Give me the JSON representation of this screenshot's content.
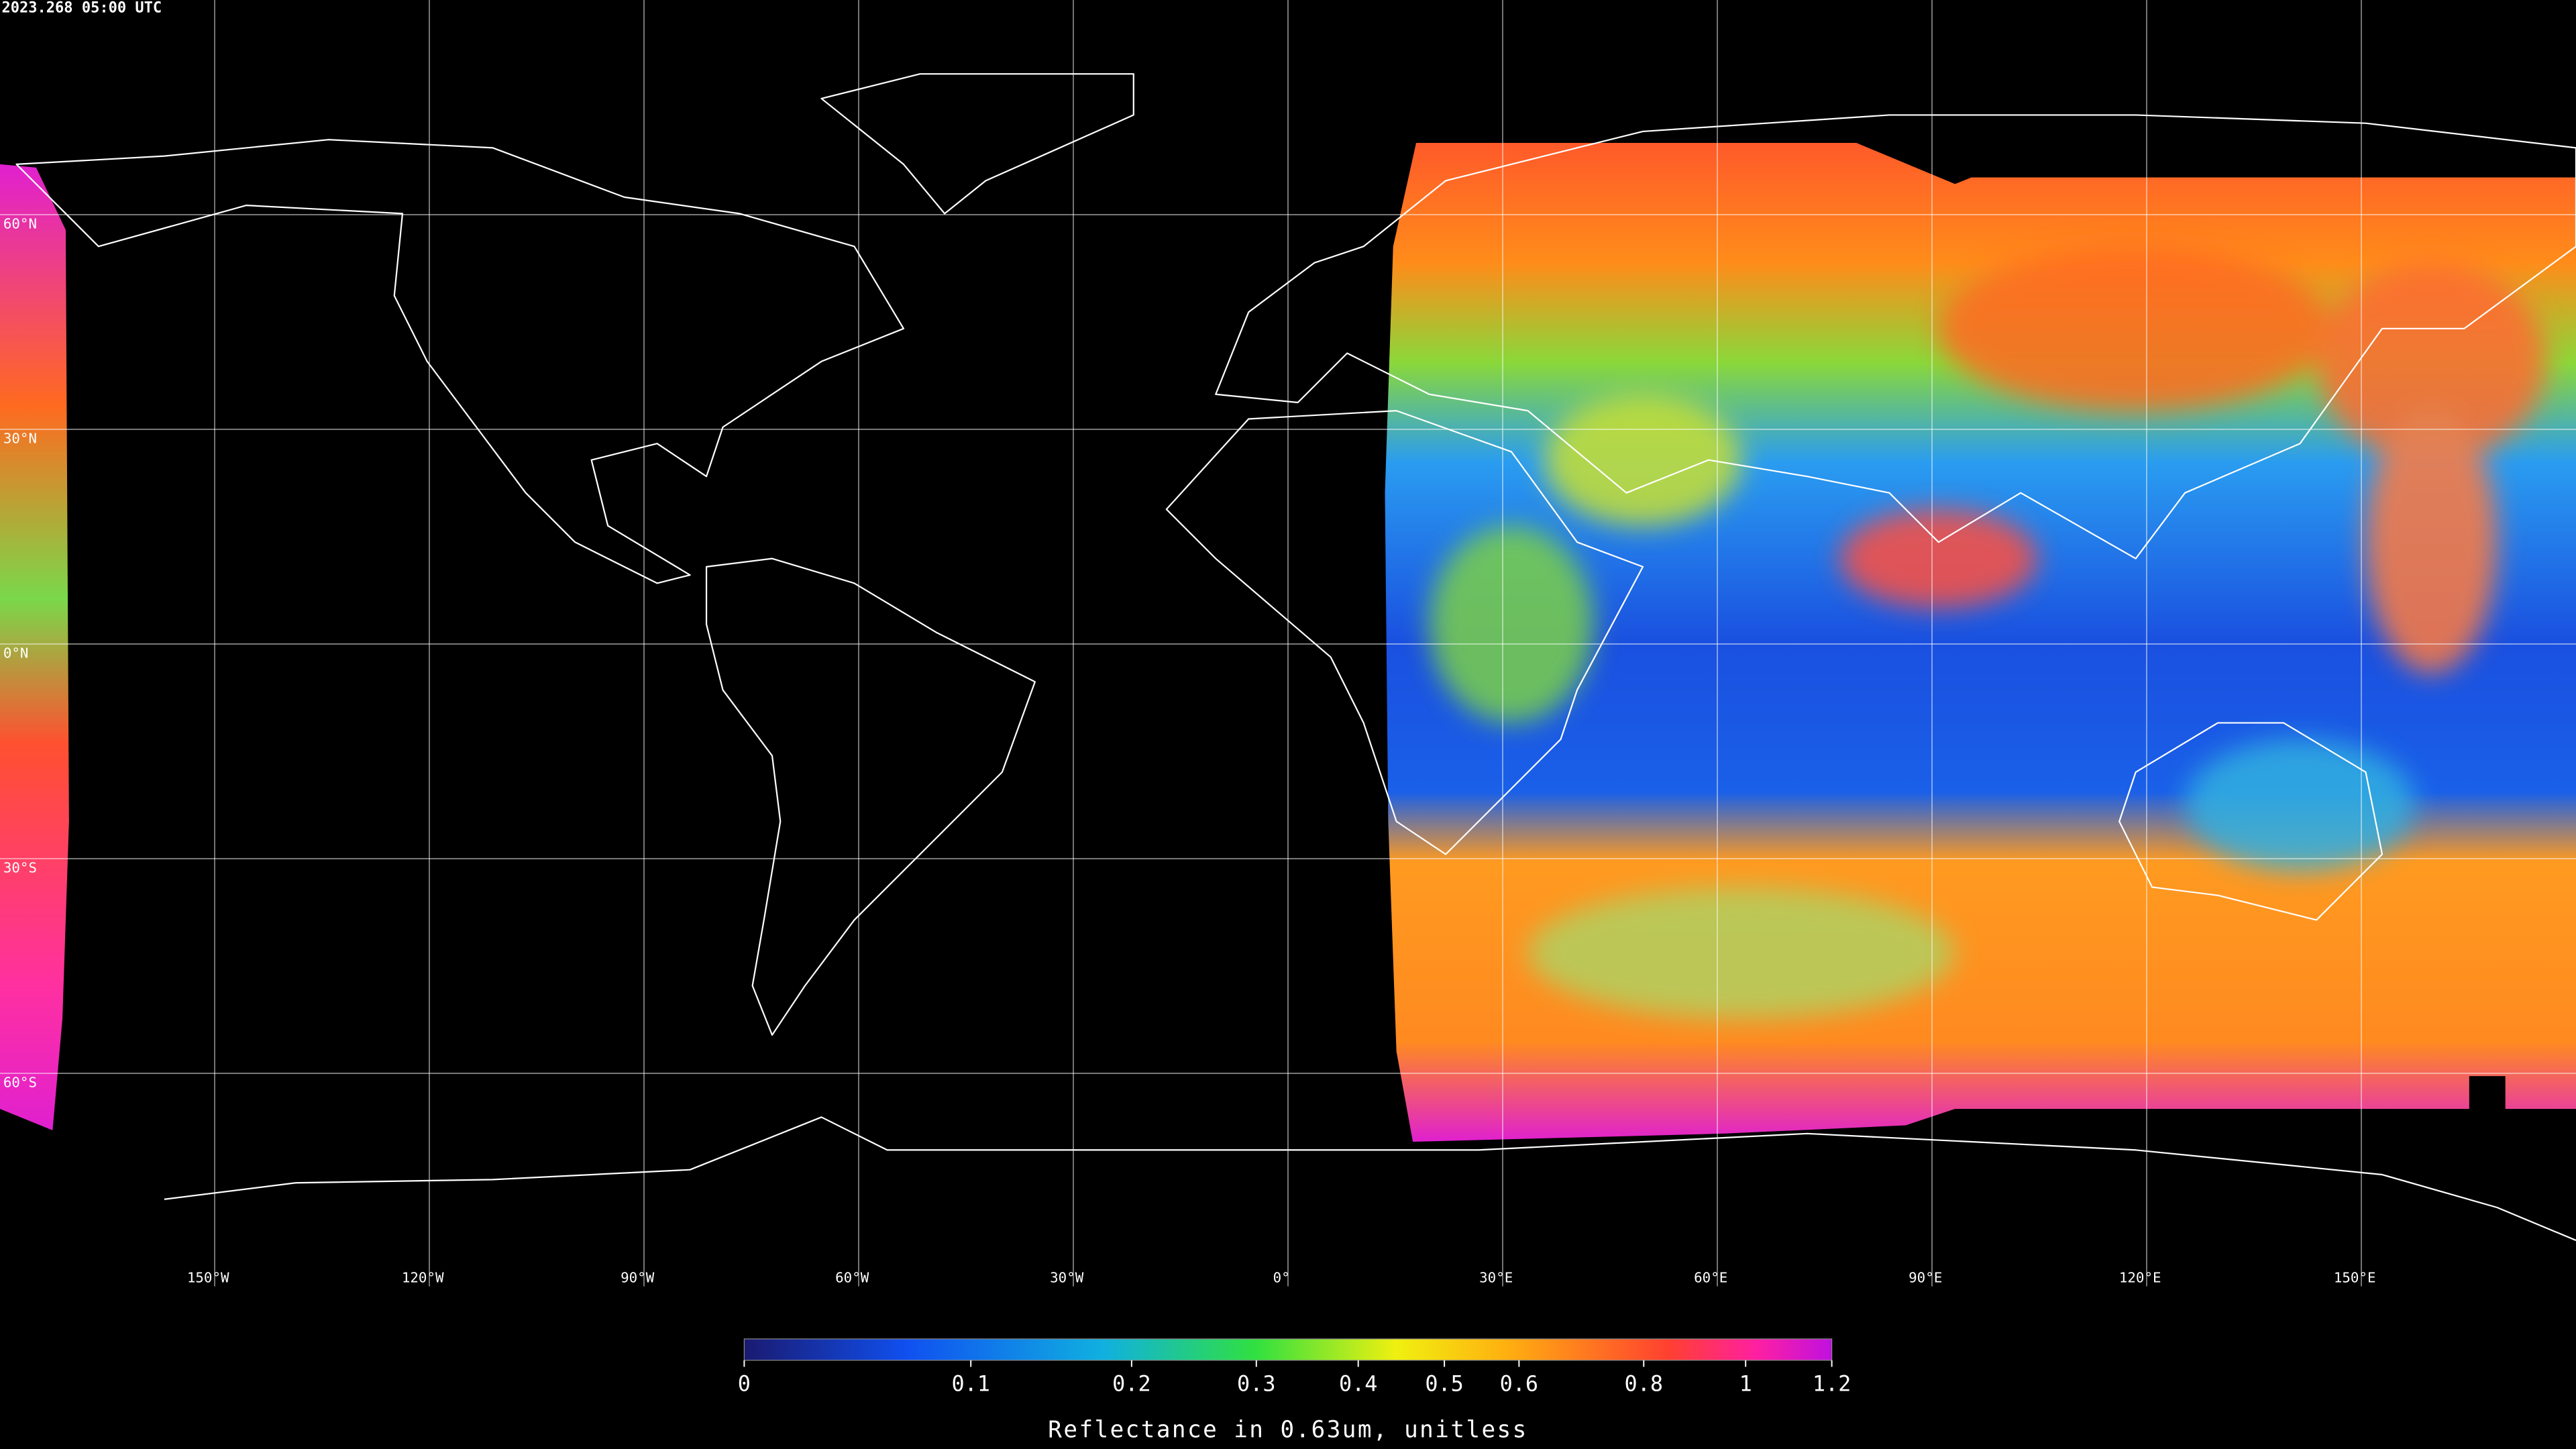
{
  "timestamp": "2023.268 05:00 UTC",
  "map": {
    "lon_range": [
      -180,
      180
    ],
    "lat_range": [
      -90,
      90
    ],
    "lon_ticks": [
      {
        "value": -150,
        "label": "150°W"
      },
      {
        "value": -120,
        "label": "120°W"
      },
      {
        "value": -90,
        "label": "90°W"
      },
      {
        "value": -60,
        "label": "60°W"
      },
      {
        "value": -30,
        "label": "30°W"
      },
      {
        "value": 0,
        "label": "0°"
      },
      {
        "value": 30,
        "label": "30°E"
      },
      {
        "value": 60,
        "label": "60°E"
      },
      {
        "value": 90,
        "label": "90°E"
      },
      {
        "value": 120,
        "label": "120°E"
      },
      {
        "value": 150,
        "label": "150°E"
      }
    ],
    "lat_ticks": [
      {
        "value": 60,
        "label": "60°N"
      },
      {
        "value": 30,
        "label": "30°N"
      },
      {
        "value": 0,
        "label": "0°N"
      },
      {
        "value": -30,
        "label": "30°S"
      },
      {
        "value": -60,
        "label": "60°S"
      }
    ]
  },
  "colorbar": {
    "label": "Reflectance in 0.63um, unitless",
    "range": [
      0,
      1.2
    ],
    "ticks": [
      0,
      0.1,
      0.2,
      0.3,
      0.4,
      0.5,
      0.6,
      0.8,
      1,
      1.2
    ]
  }
}
